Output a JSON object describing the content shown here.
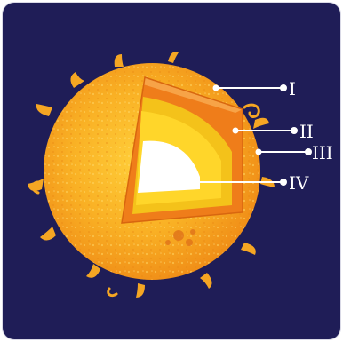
{
  "diagram": {
    "labels": [
      {
        "id": "I",
        "text": "I"
      },
      {
        "id": "II",
        "text": "II"
      },
      {
        "id": "III",
        "text": "III"
      },
      {
        "id": "IV",
        "text": "IV"
      }
    ],
    "colors": {
      "background": "#1f1d57",
      "sun_surface": "#f6a21c",
      "outer_layer": "#ef7d1a",
      "middle_layer": "#f4c21a",
      "inner_layer": "#ffd62a",
      "core": "#ffffff",
      "leader_line": "#ffffff"
    }
  }
}
